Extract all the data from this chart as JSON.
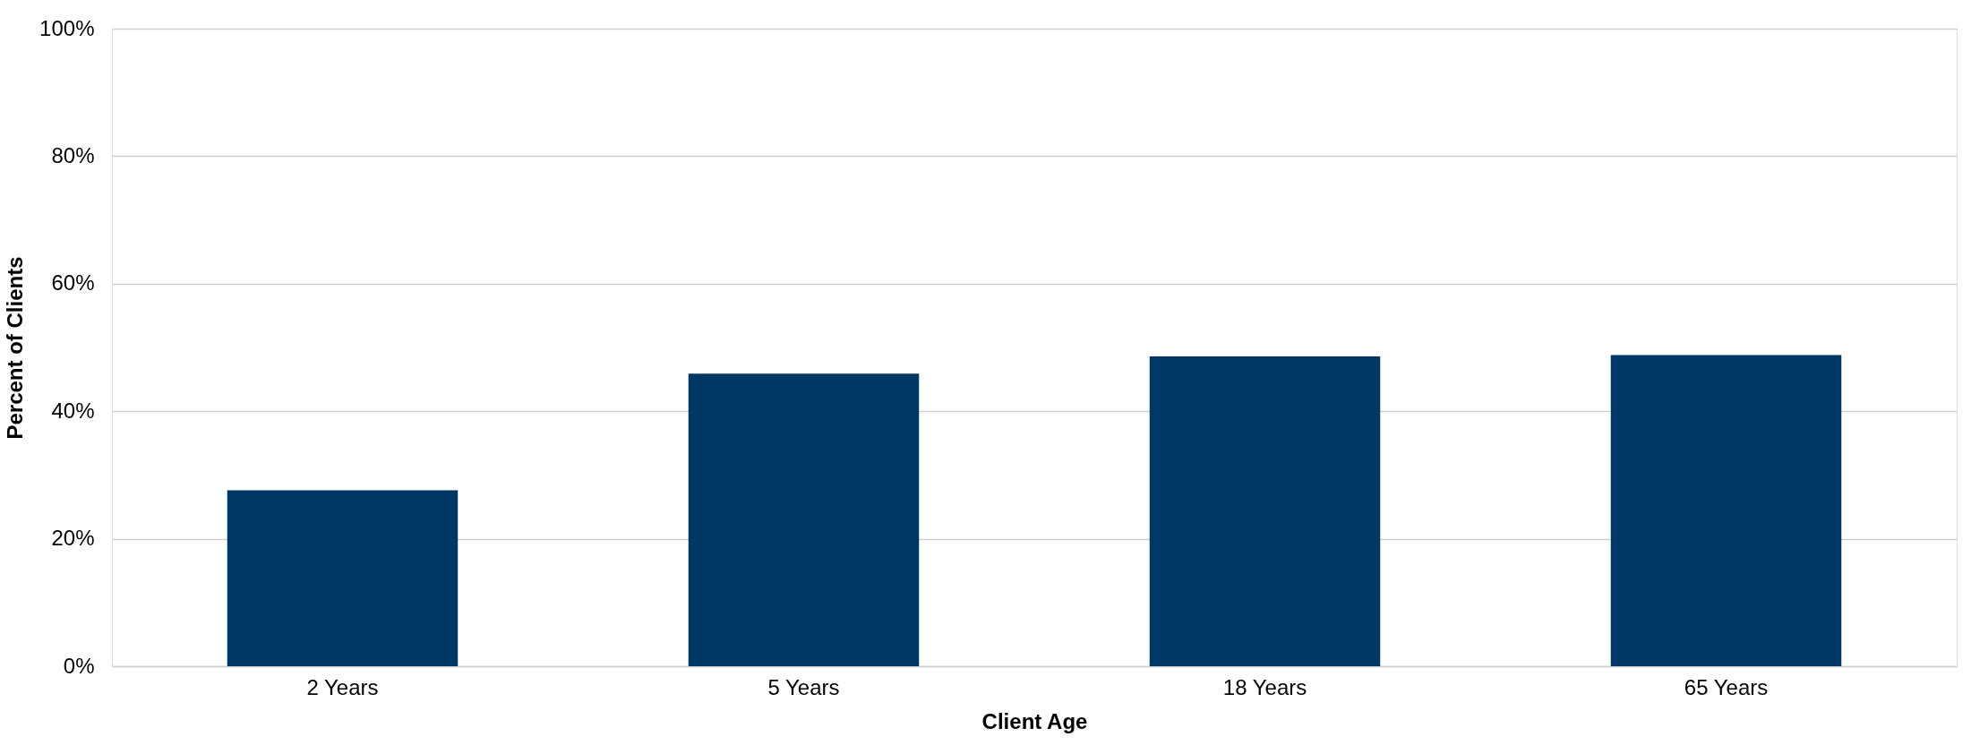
{
  "chart_data": {
    "type": "bar",
    "xlabel": "Client Age",
    "ylabel": "Percent of Clients",
    "categories": [
      "2 Years",
      "5 Years",
      "18 Years",
      "65 Years"
    ],
    "values": [
      27.6,
      45.9,
      48.6,
      48.8
    ],
    "color": "#003865",
    "ylim": [
      0,
      100
    ],
    "yticks": [
      {
        "value": 0,
        "label": "0%"
      },
      {
        "value": 20,
        "label": "20%"
      },
      {
        "value": 40,
        "label": "40%"
      },
      {
        "value": 60,
        "label": "60%"
      },
      {
        "value": 80,
        "label": "80%"
      },
      {
        "value": 100,
        "label": "100%"
      }
    ],
    "grid": "y"
  }
}
